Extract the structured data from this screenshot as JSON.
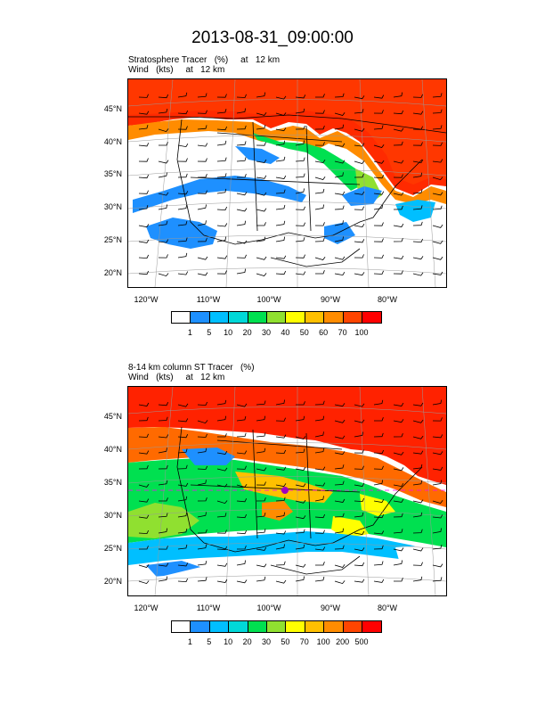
{
  "title": "2013-08-31_09:00:00",
  "panel1": {
    "line1": "Stratosphere Tracer   (%)     at   12 km",
    "line2": "Wind   (kts)     at   12 km",
    "colorbar_labels": [
      "1",
      "5",
      "10",
      "20",
      "30",
      "40",
      "50",
      "60",
      "70",
      "100"
    ]
  },
  "panel2": {
    "line1": "8-14 km column ST Tracer   (%)",
    "line2": "Wind   (kts)     at   12 km",
    "colorbar_labels": [
      "1",
      "5",
      "10",
      "20",
      "30",
      "50",
      "70",
      "100",
      "200",
      "500"
    ]
  },
  "lat_labels": [
    "45°N",
    "40°N",
    "35°N",
    "30°N",
    "25°N",
    "20°N"
  ],
  "lon_labels": [
    "120°W",
    "110°W",
    "100°W",
    "90°W",
    "80°W"
  ],
  "colorbar_colors": [
    "#ffffff",
    "#1e90ff",
    "#00bfff",
    "#00d8d8",
    "#00e050",
    "#90e030",
    "#ffff00",
    "#ffc000",
    "#ff8c00",
    "#ff4500",
    "#ff0000"
  ]
}
